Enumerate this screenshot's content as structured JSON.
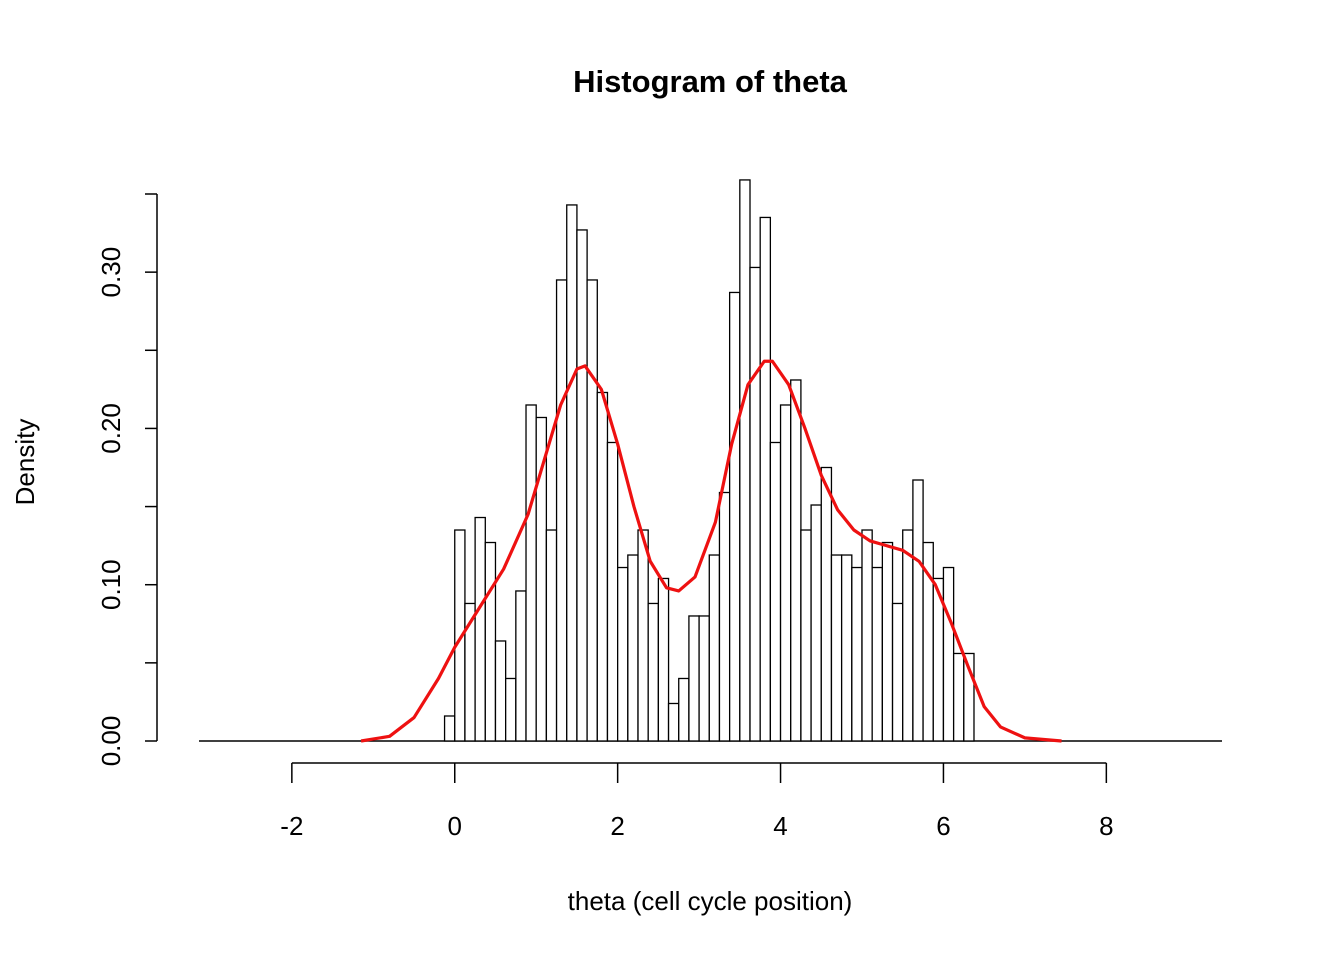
{
  "chart_data": {
    "type": "histogram",
    "title": "Histogram of theta",
    "x_label": "theta (cell cycle position)",
    "y_label": "Density",
    "bins": [
      -0.125,
      0,
      0.125,
      0.25,
      0.375,
      0.5,
      0.625,
      0.75,
      0.875,
      1,
      1.125,
      1.25,
      1.375,
      1.5,
      1.625,
      1.75,
      1.875,
      2,
      2.125,
      2.25,
      2.375,
      2.5,
      2.625,
      2.75,
      2.875,
      3,
      3.125,
      3.25,
      3.375,
      3.5,
      3.625,
      3.75,
      3.875,
      4,
      4.125,
      4.25,
      4.375,
      4.5,
      4.625,
      4.75,
      4.875,
      5,
      5.125,
      5.25,
      5.375,
      5.5,
      5.625,
      5.75,
      5.875,
      6,
      6.125,
      6.25,
      6.375
    ],
    "values": [
      0.016,
      0.135,
      0.088,
      0.143,
      0.127,
      0.064,
      0.04,
      0.096,
      0.215,
      0.207,
      0.135,
      0.295,
      0.343,
      0.327,
      0.295,
      0.223,
      0.191,
      0.111,
      0.119,
      0.135,
      0.088,
      0.104,
      0.024,
      0.04,
      0.08,
      0.08,
      0.119,
      0.159,
      0.287,
      0.359,
      0.303,
      0.335,
      0.191,
      0.215,
      0.231,
      0.135,
      0.151,
      0.175,
      0.119,
      0.119,
      0.111,
      0.135,
      0.111,
      0.127,
      0.088,
      0.135,
      0.167,
      0.127,
      0.104,
      0.111,
      0.056,
      0.056
    ],
    "color": "#ffffff",
    "density": {
      "color": "#ee1111",
      "x": [
        -1.15,
        -0.8,
        -0.5,
        -0.2,
        0,
        0.3,
        0.6,
        0.9,
        1.1,
        1.3,
        1.5,
        1.6,
        1.8,
        2.0,
        2.2,
        2.4,
        2.6,
        2.75,
        2.95,
        3.2,
        3.4,
        3.6,
        3.8,
        3.9,
        4.1,
        4.3,
        4.5,
        4.7,
        4.9,
        5.1,
        5.3,
        5.5,
        5.7,
        5.9,
        6.1,
        6.3,
        6.5,
        6.7,
        7.0,
        7.45
      ],
      "values": [
        0,
        0.003,
        0.015,
        0.04,
        0.06,
        0.085,
        0.11,
        0.145,
        0.18,
        0.215,
        0.238,
        0.24,
        0.225,
        0.19,
        0.15,
        0.115,
        0.098,
        0.096,
        0.105,
        0.14,
        0.19,
        0.228,
        0.243,
        0.243,
        0.228,
        0.2,
        0.17,
        0.148,
        0.135,
        0.128,
        0.125,
        0.122,
        0.115,
        0.1,
        0.075,
        0.048,
        0.022,
        0.009,
        0.002,
        0
      ]
    },
    "xlim": [
      -3.14,
      9.42
    ],
    "ylim": [
      0,
      0.35
    ],
    "xticks": [
      -2,
      0,
      2,
      4,
      6,
      8
    ],
    "yticks": [
      {
        "value": 0,
        "label": "0.00"
      },
      {
        "value": 0.1,
        "label": "0.10"
      },
      {
        "value": 0.2,
        "label": "0.20"
      },
      {
        "value": 0.3,
        "label": "0.30"
      }
    ],
    "minor_yticks": [
      0.05,
      0.15,
      0.25,
      0.35
    ]
  }
}
